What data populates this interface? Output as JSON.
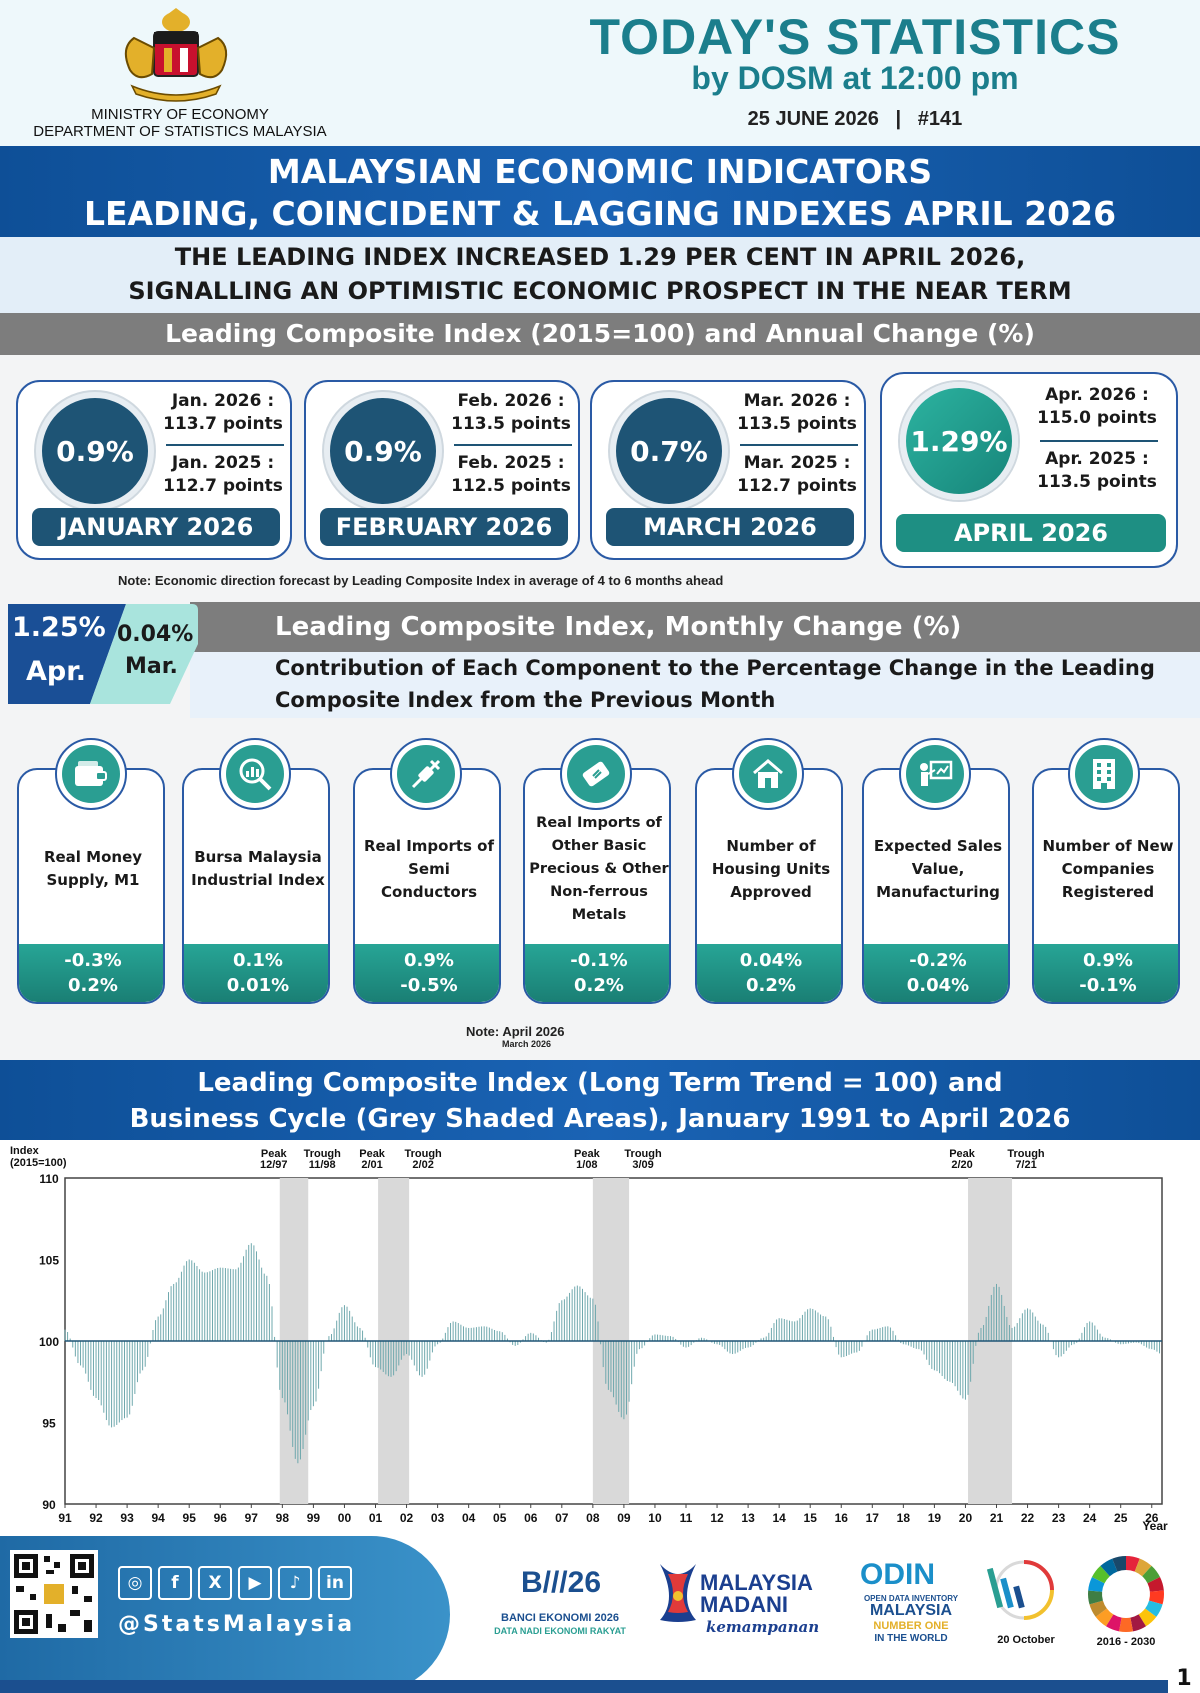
{
  "header": {
    "title": "TODAY'S STATISTICS",
    "subtitle": "by DOSM at 12:00 pm",
    "date_line": "25 JUNE 2026   |   #141",
    "ministry_line1": "MINISTRY OF ECONOMY",
    "ministry_line2": "DEPARTMENT OF STATISTICS MALAYSIA"
  },
  "main_title": {
    "line1": "MALAYSIAN ECONOMIC INDICATORS",
    "line2": "LEADING, COINCIDENT & LAGGING INDEXES APRIL 2026"
  },
  "headline": {
    "line1": "THE LEADING INDEX INCREASED 1.29 PER CENT IN APRIL 2026,",
    "line2": "SIGNALLING AN OPTIMISTIC ECONOMIC PROSPECT IN THE NEAR TERM"
  },
  "annual_section": {
    "title": "Leading Composite Index (2015=100) and Annual Change (%)",
    "months": [
      {
        "change": "0.9%",
        "cur_label": "Jan. 2026 :",
        "cur_value": "113.7 points",
        "prev_label": "Jan. 2025 :",
        "prev_value": "112.7 points",
        "month": "JANUARY 2026"
      },
      {
        "change": "0.9%",
        "cur_label": "Feb. 2026 :",
        "cur_value": "113.5 points",
        "prev_label": "Feb. 2025 :",
        "prev_value": "112.5 points",
        "month": "FEBRUARY 2026"
      },
      {
        "change": "0.7%",
        "cur_label": "Mar. 2026 :",
        "cur_value": "113.5 points",
        "prev_label": "Mar. 2025 :",
        "prev_value": "112.7 points",
        "month": "MARCH 2026"
      },
      {
        "change": "1.29%",
        "cur_label": "Apr. 2026 :",
        "cur_value": "115.0 points",
        "prev_label": "Apr. 2025 :",
        "prev_value": "113.5 points",
        "month": "APRIL 2026"
      }
    ],
    "note": "Note: Economic direction forecast by Leading Composite Index in average of 4 to 6 months ahead"
  },
  "monthly_section": {
    "apr_value": "1.25%",
    "apr_label": "Apr.",
    "mar_value": "0.04%",
    "mar_label": "Mar.",
    "title": "Leading Composite Index, Monthly Change (%)",
    "subtitle_line1": "Contribution of Each Component to the Percentage Change in the Leading",
    "subtitle_line2": "Composite Index from the Previous Month",
    "components": [
      {
        "icon": "wallet-icon",
        "label": "Real Money Supply, M1",
        "apr": "-0.3%",
        "mar": "0.2%"
      },
      {
        "icon": "chart-magnifier-icon",
        "label": "Bursa Malaysia Industrial Index",
        "apr": "0.1%",
        "mar": "0.01%"
      },
      {
        "icon": "plug-icon",
        "label": "Real Imports of Semi Conductors",
        "apr": "0.9%",
        "mar": "-0.5%"
      },
      {
        "icon": "metal-bar-icon",
        "label": "Real Imports of Other Basic Precious & Other Non-ferrous Metals",
        "apr": "-0.1%",
        "mar": "0.2%"
      },
      {
        "icon": "house-icon",
        "label": "Number of Housing Units Approved",
        "apr": "0.04%",
        "mar": "0.2%"
      },
      {
        "icon": "presentation-icon",
        "label": "Expected Sales Value, Manufacturing",
        "apr": "-0.2%",
        "mar": "0.04%"
      },
      {
        "icon": "building-icon",
        "label": "Number of New Companies Registered",
        "apr": "0.9%",
        "mar": "-0.1%"
      }
    ],
    "note_line1": "Note: April 2026",
    "note_line2": "March 2026"
  },
  "chart_section": {
    "title_line1": "Leading Composite Index (Long Term Trend = 100) and",
    "title_line2": "Business Cycle (Grey Shaded Areas), January 1991 to April 2026"
  },
  "chart_data": {
    "type": "bar",
    "ylabel": "Index\n(2015=100)",
    "xlabel": "Year",
    "ylim": [
      90,
      110
    ],
    "yticks": [
      90,
      95,
      100,
      105,
      110
    ],
    "baseline": 100,
    "xticks": [
      "91",
      "92",
      "93",
      "94",
      "95",
      "96",
      "97",
      "98",
      "99",
      "00",
      "01",
      "02",
      "03",
      "04",
      "05",
      "06",
      "07",
      "08",
      "09",
      "10",
      "11",
      "12",
      "13",
      "14",
      "15",
      "16",
      "17",
      "18",
      "19",
      "20",
      "21",
      "22",
      "23",
      "24",
      "25",
      "26"
    ],
    "x_start": 1991.0,
    "x_end": 2026.33,
    "shaded_periods": [
      {
        "peak": "12/97",
        "trough": "11/98"
      },
      {
        "peak": "2/01",
        "trough": "2/02"
      },
      {
        "peak": "1/08",
        "trough": "3/09"
      },
      {
        "peak": "2/20",
        "trough": "7/21"
      }
    ],
    "peak_label": "Peak",
    "trough_label": "Trough",
    "series": [
      {
        "values_by_year": [
          [
            1991.0,
            100.7
          ],
          [
            1991.5,
            98.5
          ],
          [
            1992.0,
            96.5
          ],
          [
            1992.5,
            94.7
          ],
          [
            1993.0,
            95.3
          ],
          [
            1993.5,
            98.2
          ],
          [
            1994.0,
            101.5
          ],
          [
            1994.5,
            103.5
          ],
          [
            1995.0,
            105.0
          ],
          [
            1995.5,
            104.2
          ],
          [
            1996.0,
            104.5
          ],
          [
            1996.5,
            104.4
          ],
          [
            1997.0,
            106.0
          ],
          [
            1997.5,
            104.0
          ],
          [
            1998.0,
            96.5
          ],
          [
            1998.5,
            92.5
          ],
          [
            1999.0,
            96.0
          ],
          [
            1999.5,
            100.3
          ],
          [
            2000.0,
            102.2
          ],
          [
            2000.5,
            100.8
          ],
          [
            2001.0,
            98.4
          ],
          [
            2001.5,
            97.8
          ],
          [
            2002.0,
            99.2
          ],
          [
            2002.5,
            97.8
          ],
          [
            2003.0,
            99.8
          ],
          [
            2003.5,
            101.2
          ],
          [
            2004.0,
            100.8
          ],
          [
            2004.5,
            100.9
          ],
          [
            2005.0,
            100.6
          ],
          [
            2005.5,
            99.7
          ],
          [
            2006.0,
            100.5
          ],
          [
            2006.5,
            99.9
          ],
          [
            2007.0,
            102.5
          ],
          [
            2007.5,
            103.4
          ],
          [
            2008.0,
            102.6
          ],
          [
            2008.5,
            97.0
          ],
          [
            2009.0,
            95.2
          ],
          [
            2009.5,
            99.5
          ],
          [
            2010.0,
            100.4
          ],
          [
            2010.5,
            100.3
          ],
          [
            2011.0,
            99.6
          ],
          [
            2011.5,
            100.2
          ],
          [
            2012.0,
            99.8
          ],
          [
            2012.5,
            99.2
          ],
          [
            2013.0,
            99.6
          ],
          [
            2013.5,
            100.2
          ],
          [
            2014.0,
            101.4
          ],
          [
            2014.5,
            101.2
          ],
          [
            2015.0,
            102.0
          ],
          [
            2015.5,
            101.5
          ],
          [
            2016.0,
            99.0
          ],
          [
            2016.5,
            99.3
          ],
          [
            2017.0,
            100.7
          ],
          [
            2017.5,
            100.9
          ],
          [
            2018.0,
            99.8
          ],
          [
            2018.5,
            99.5
          ],
          [
            2019.0,
            98.2
          ],
          [
            2019.5,
            97.5
          ],
          [
            2020.0,
            96.4
          ],
          [
            2020.5,
            100.8
          ],
          [
            2021.0,
            103.5
          ],
          [
            2021.5,
            100.8
          ],
          [
            2022.0,
            102.0
          ],
          [
            2022.5,
            101.0
          ],
          [
            2023.0,
            99.0
          ],
          [
            2023.5,
            99.8
          ],
          [
            2024.0,
            101.2
          ],
          [
            2024.5,
            100.2
          ],
          [
            2025.0,
            99.8
          ],
          [
            2025.5,
            99.9
          ],
          [
            2026.0,
            99.5
          ],
          [
            2026.33,
            99.2
          ]
        ]
      }
    ]
  },
  "footer": {
    "handle": "@StatsMalaysia",
    "social_icons": [
      "instagram-icon",
      "facebook-icon",
      "x-icon",
      "youtube-icon",
      "tiktok-icon",
      "linkedin-icon"
    ],
    "banci_title": "BANCI EKONOMI 2026",
    "banci_sub": "DATA NADI EKONOMI RAKYAT",
    "madani_line1": "MALAYSIA",
    "madani_line2": "MADANI",
    "madani_line3": "kemampanan",
    "odin_line1": "OPEN DATA INVENTORY",
    "odin_line2": "MALAYSIA",
    "odin_line3": "NUMBER ONE",
    "odin_line4": "IN THE WORLD",
    "stats_day": "20 October",
    "sdg_years": "2016 - 2030",
    "page_number": "1"
  },
  "colors": {
    "teal": "#1b7e8c",
    "navy": "#0e4f97",
    "dark_teal_circle": "#1e5475",
    "green_teal": "#1e8f83",
    "grey_band": "#7d7d7d"
  }
}
